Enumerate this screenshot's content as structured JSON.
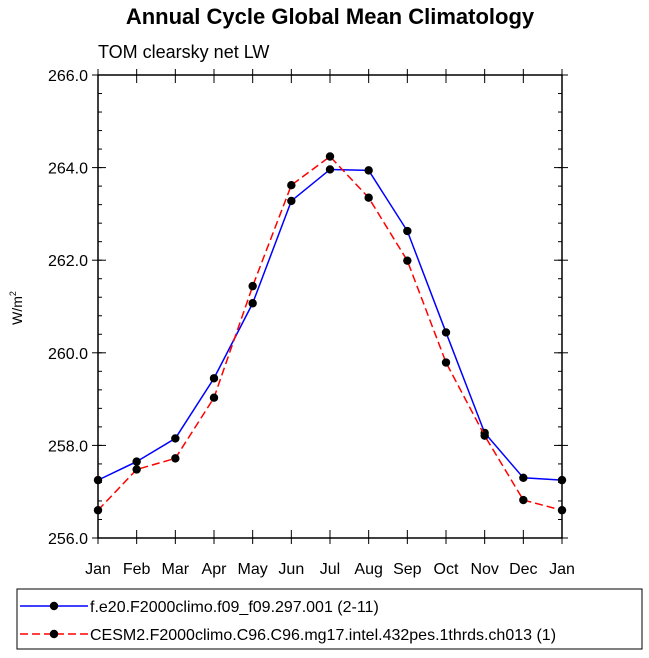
{
  "chart_data": {
    "type": "line",
    "title": "Annual Cycle Global Mean Climatology",
    "subtitle": "TOM clearsky net LW",
    "ylabel": "W/m",
    "ylabel_sup": "2",
    "ylim": [
      256.0,
      266.0
    ],
    "ytick_values": [
      256.0,
      258.0,
      260.0,
      262.0,
      264.0,
      266.0
    ],
    "ytick_labels": [
      "256.0",
      "258.0",
      "260.0",
      "262.0",
      "264.0",
      "266.0"
    ],
    "categories": [
      "Jan",
      "Feb",
      "Mar",
      "Apr",
      "May",
      "Jun",
      "Jul",
      "Aug",
      "Sep",
      "Oct",
      "Nov",
      "Dec",
      "Jan"
    ],
    "series": [
      {
        "name": "f.e20.F2000climo.f09_f09.297.001 (2-11)",
        "color": "#0000ff",
        "dash": "solid",
        "values": [
          257.25,
          257.65,
          258.15,
          259.45,
          261.07,
          263.28,
          263.96,
          263.94,
          262.63,
          260.44,
          258.27,
          257.3,
          257.25
        ]
      },
      {
        "name": "CESM2.F2000climo.C96.C96.mg17.intel.432pes.1thrds.ch013 (1)",
        "color": "#ff0000",
        "dash": "dashed",
        "values": [
          256.6,
          257.48,
          257.72,
          259.03,
          261.44,
          263.62,
          264.24,
          263.35,
          261.99,
          259.79,
          258.21,
          256.82,
          256.6
        ]
      }
    ],
    "legend_position": "bottom"
  }
}
